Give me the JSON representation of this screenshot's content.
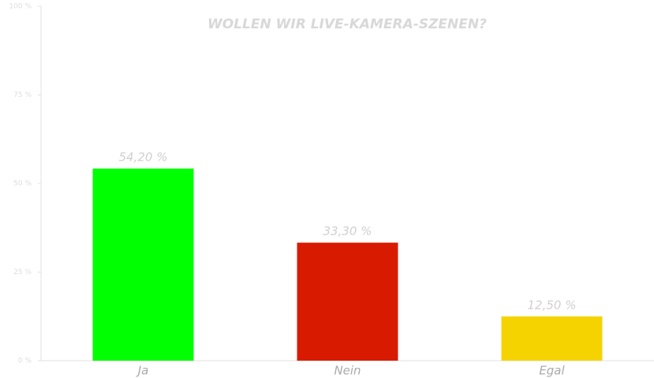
{
  "chart_data": {
    "type": "bar",
    "title": "WOLLEN WIR LIVE-KAMERA-SZENEN?",
    "categories": [
      "Ja",
      "Nein",
      "Egal"
    ],
    "values": [
      54.2,
      33.3,
      12.5
    ],
    "value_labels": [
      "54,20 %",
      "33,30 %",
      "12,50 %"
    ],
    "colors": [
      "#00ff00",
      "#d81b00",
      "#f5d300"
    ],
    "ylim": [
      0,
      100
    ],
    "yticks": [
      {
        "value": 0,
        "label": "0 %"
      },
      {
        "value": 25,
        "label": "25 %"
      },
      {
        "value": 50,
        "label": "50 %"
      },
      {
        "value": 75,
        "label": "75 %"
      },
      {
        "value": 100,
        "label": "100 %"
      }
    ],
    "grid": false
  }
}
